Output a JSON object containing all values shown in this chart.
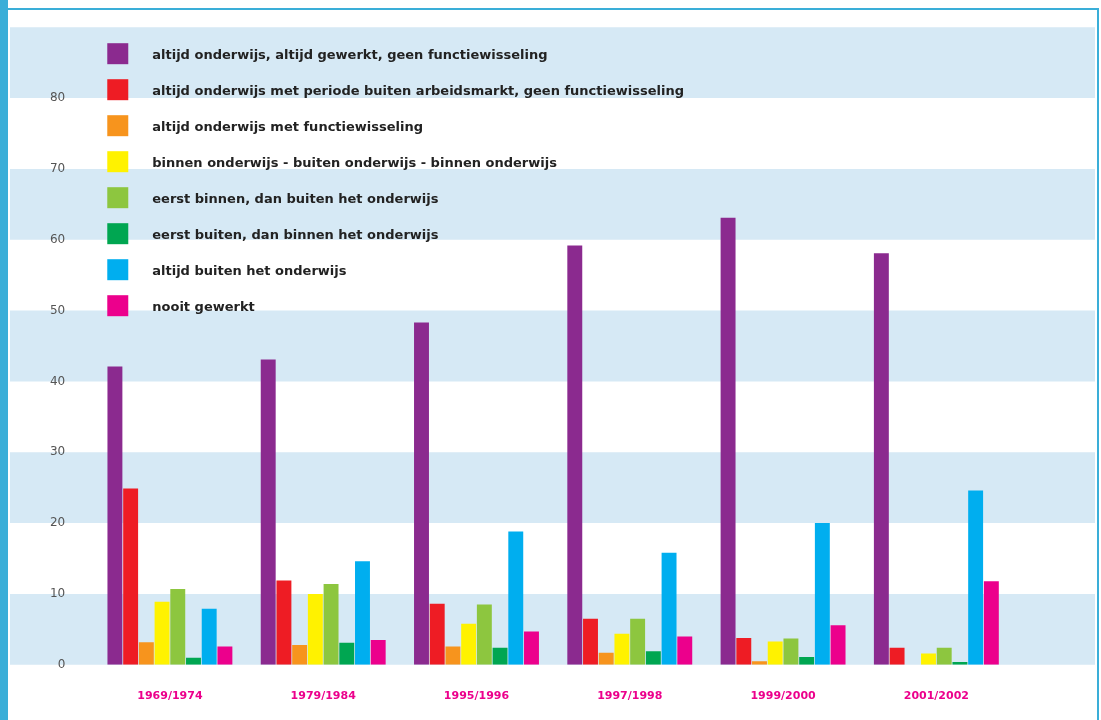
{
  "chart_data": {
    "type": "bar",
    "categories": [
      "1969/1974",
      "1979/1984",
      "1995/1996",
      "1997/1998",
      "1999/2000",
      "2001/2002"
    ],
    "series": [
      {
        "name": "altijd onderwijs, altijd gewerkt, geen functiewisseling",
        "color": "#8b2a8f",
        "values": [
          42.1,
          43.1,
          48.3,
          59.2,
          63.1,
          58.1
        ]
      },
      {
        "name": "altijd onderwijs met periode buiten arbeidsmarkt, geen functiewisseling",
        "color": "#ee1c24",
        "values": [
          24.9,
          11.9,
          8.6,
          6.5,
          3.8,
          2.4
        ]
      },
      {
        "name": "altijd onderwijs met functiewisseling",
        "color": "#f7941d",
        "values": [
          3.2,
          2.8,
          2.6,
          1.7,
          0.5,
          null
        ]
      },
      {
        "name": "binnen onderwijs - buiten onderwijs - binnen onderwijs",
        "color": "#fff200",
        "values": [
          8.9,
          10,
          5.8,
          4.4,
          3.3,
          1.6
        ]
      },
      {
        "name": "eerst binnen, dan buiten het onderwijs",
        "color": "#8dc63f",
        "values": [
          10.7,
          11.4,
          8.5,
          6.5,
          3.7,
          2.4
        ]
      },
      {
        "name": "eerst buiten, dan binnen het onderwijs",
        "color": "#00a651",
        "values": [
          1,
          3.1,
          2.4,
          1.9,
          1.1,
          0.4
        ]
      },
      {
        "name": "altijd buiten het onderwijs",
        "color": "#00aeef",
        "values": [
          7.9,
          14.6,
          18.8,
          15.8,
          20,
          24.6
        ]
      },
      {
        "name": "nooit gewerkt",
        "color": "#ec008c",
        "values": [
          2.6,
          3.5,
          4.7,
          4,
          5.6,
          11.8
        ]
      }
    ],
    "ylim": [
      0,
      90
    ],
    "yticks": [
      0,
      10,
      20,
      30,
      40,
      50,
      60,
      70,
      80
    ],
    "bands": [
      {
        "axis": "y",
        "from": 0,
        "to": 10,
        "color": "#d6e9f5"
      },
      {
        "axis": "y",
        "from": 20,
        "to": 30,
        "color": "#d6e9f5"
      },
      {
        "axis": "y",
        "from": 40,
        "to": 50,
        "color": "#d6e9f5"
      },
      {
        "axis": "y",
        "from": 60,
        "to": 70,
        "color": "#d6e9f5"
      },
      {
        "axis": "y",
        "from": 80,
        "to": 90,
        "color": "#d6e9f5"
      }
    ],
    "legend": "top left"
  }
}
